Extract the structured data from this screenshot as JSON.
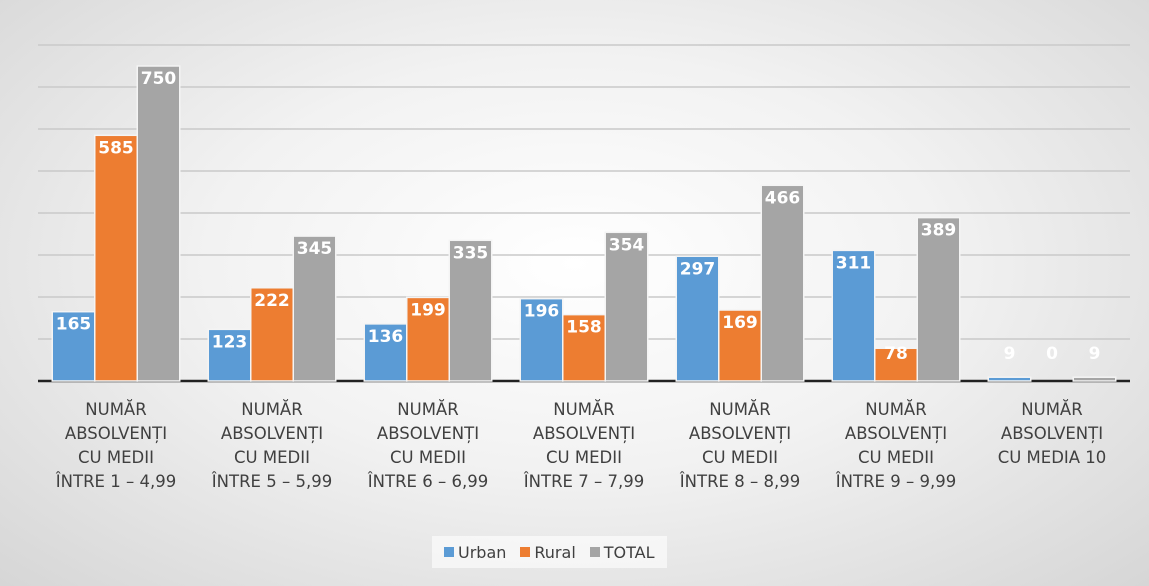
{
  "chart_data": {
    "type": "bar",
    "categories": [
      "NUMĂR\nABSOLVENȚI\nCU MEDII\nÎNTRE 1 – 4,99",
      "NUMĂR\nABSOLVENȚI\nCU MEDII\nÎNTRE 5 – 5,99",
      "NUMĂR\nABSOLVENȚI\nCU MEDII\nÎNTRE 6 – 6,99",
      "NUMĂR\nABSOLVENȚI\nCU MEDII\nÎNTRE 7 – 7,99",
      "NUMĂR\nABSOLVENȚI\nCU MEDII\nÎNTRE  8 – 8,99",
      "NUMĂR\nABSOLVENȚI\nCU MEDII\nÎNTRE  9 – 9,99",
      "NUMĂR\nABSOLVENȚI\nCU MEDIA 10"
    ],
    "series": [
      {
        "name": "Urban",
        "color": "#5b9bd5",
        "values": [
          165,
          123,
          136,
          196,
          297,
          311,
          9
        ]
      },
      {
        "name": "Rural",
        "color": "#ed7d31",
        "values": [
          585,
          222,
          199,
          158,
          169,
          78,
          0
        ]
      },
      {
        "name": "TOTAL",
        "color": "#a5a5a5",
        "values": [
          750,
          345,
          335,
          354,
          466,
          389,
          9
        ]
      }
    ],
    "ylim": [
      0,
      800
    ],
    "yticks": [
      0,
      100,
      200,
      300,
      400,
      500,
      600,
      700,
      800
    ],
    "grid": true,
    "legend": "bottom"
  }
}
